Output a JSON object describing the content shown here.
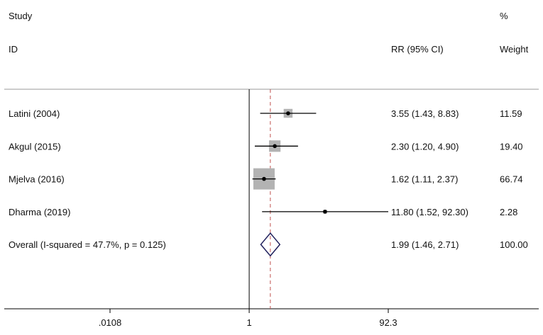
{
  "header": {
    "study_label": "Study",
    "id_label": "ID",
    "effect_label": "RR (95% CI)",
    "weight_pct_label": "%",
    "weight_label": "Weight"
  },
  "chart_data": {
    "type": "forest",
    "measure": "RR",
    "x_scale": "log",
    "xticks": [
      ".0108",
      "1",
      "92.3"
    ],
    "xtick_values": [
      0.0108,
      1,
      92.3
    ],
    "null_line": 1,
    "overall_line": 1.99,
    "studies": [
      {
        "label": "Latini  (2004)",
        "rr": 3.55,
        "lower": 1.43,
        "upper": 8.83,
        "rr_ci_text": "3.55 (1.43, 8.83)",
        "weight": 11.59,
        "weight_text": "11.59"
      },
      {
        "label": "Akgul (2015)",
        "rr": 2.3,
        "lower": 1.2,
        "upper": 4.9,
        "rr_ci_text": "2.30 (1.20, 4.90)",
        "weight": 19.4,
        "weight_text": "19.40"
      },
      {
        "label": "Mjelva (2016)",
        "rr": 1.62,
        "lower": 1.11,
        "upper": 2.37,
        "rr_ci_text": "1.62 (1.11, 2.37)",
        "weight": 66.74,
        "weight_text": "66.74"
      },
      {
        "label": "Dharma (2019)",
        "rr": 11.8,
        "lower": 1.52,
        "upper": 92.3,
        "rr_ci_text": "11.80 (1.52, 92.30)",
        "weight": 2.28,
        "weight_text": "2.28"
      }
    ],
    "overall": {
      "label": "Overall  (I-squared = 47.7%, p = 0.125)",
      "rr": 1.99,
      "lower": 1.46,
      "upper": 2.71,
      "rr_ci_text": "1.99 (1.46, 2.71)",
      "weight": 100.0,
      "weight_text": "100.00"
    },
    "colors": {
      "box": "#b3b3b3",
      "diamond": "#1f1f5c",
      "overall_line": "#c0504d",
      "frame": "#000000"
    }
  }
}
